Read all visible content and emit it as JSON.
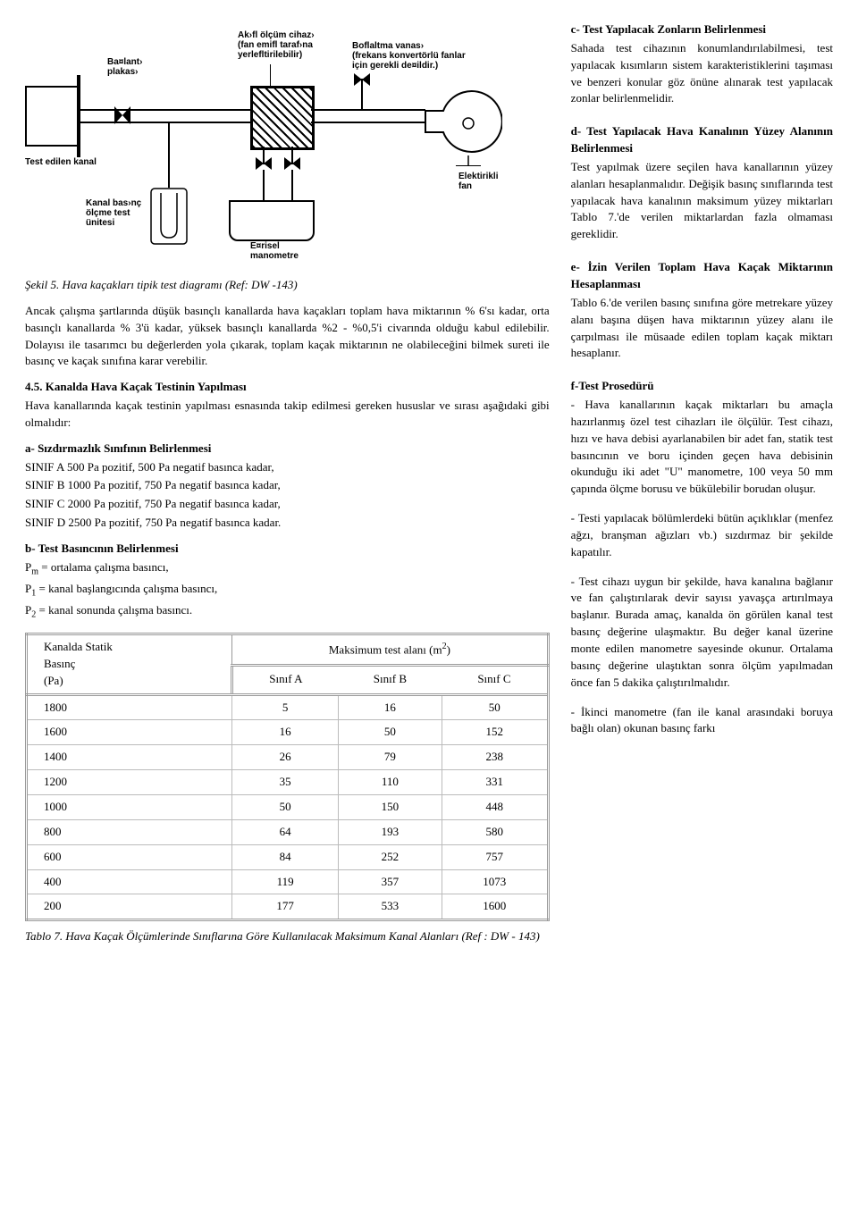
{
  "diagram": {
    "labels": {
      "baglanti_plakasi": "Ba¤lant›\nplakas›",
      "test_edilen_kanal": "Test edilen kanal",
      "akisi_olcum": "Ak›fl ölçüm cihaz›\n(fan emifl taraf›na\nyerlefltirilebilir)",
      "bosaltma_vanasi": "Boflaltma vanas›\n(frekans konvertörlü fanlar\niçin gerekli de¤ildir.)",
      "elektirikli_fan": "Elektirikli\nfan",
      "kanal_basinc": "Kanal bas›nç\nölçme test\nünitesi",
      "egrisel_manometre": "E¤risel\nmanometre"
    },
    "stroke_color": "#000000",
    "background_color": "#ffffff"
  },
  "figure5_caption": "Şekil 5. Hava kaçakları tipik test diagramı (Ref: DW -143)",
  "para_after_fig": "Ancak çalışma şartlarında düşük basınçlı kanallarda hava kaçakları toplam hava miktarının % 6'sı kadar, orta basınçlı kanallarda % 3'ü kadar, yüksek basınçlı kanallarda %2 - %0,5'i civarında olduğu kabul edilebilir. Dolayısı ile tasarımcı bu değerlerden yola çıkarak, toplam kaçak miktarının ne olabileceğini bilmek sureti ile basınç ve kaçak sınıfına karar verebilir.",
  "sec_4_5": {
    "title": "4.5. Kanalda Hava Kaçak Testinin Yapılması",
    "body": "Hava kanallarında kaçak testinin yapılması esnasında takip edilmesi gereken hususlar ve sırası aşağıdaki gibi olmalıdır:"
  },
  "sec_a": {
    "title": "a- Sızdırmazlık Sınıfının Belirlenmesi",
    "lines": [
      "SINIF A  500 Pa pozitif, 500 Pa negatif basınca kadar,",
      "SINIF B  1000 Pa pozitif, 750 Pa negatif basınca kadar,",
      "SINIF C  2000 Pa pozitif, 750 Pa negatif basınca kadar,",
      "SINIF D  2500 Pa pozitif, 750 Pa negatif basınca kadar."
    ]
  },
  "sec_b": {
    "title": "b- Test Basıncının Belirlenmesi",
    "lines": [
      {
        "sym": "P",
        "sub": "m",
        "txt": " = ortalama çalışma basıncı,"
      },
      {
        "sym": "P",
        "sub": "1",
        "txt": " = kanal başlangıcında çalışma basıncı,"
      },
      {
        "sym": "P",
        "sub": "2",
        "txt": " = kanal sonunda çalışma basıncı."
      }
    ]
  },
  "right_col": {
    "c": {
      "title": "c- Test Yapılacak Zonların Belirlenmesi",
      "body": "Sahada test cihazının konumlandırılabilmesi, test yapılacak kısımların sistem karakteristiklerini taşıması ve benzeri konular göz önüne alınarak test yapılacak zonlar belirlenmelidir."
    },
    "d": {
      "title": "d- Test Yapılacak Hava Kanalının Yüzey Alanının Belirlenmesi",
      "body": "Test yapılmak üzere seçilen hava kanallarının yüzey alanları hesaplanmalıdır. Değişik basınç sınıflarında test yapılacak hava kanalının maksimum yüzey miktarları Tablo 7.'de verilen miktarlardan fazla olmaması gereklidir."
    },
    "e": {
      "title": "e- İzin Verilen Toplam Hava Kaçak Miktarının Hesaplanması",
      "body": "Tablo 6.'de verilen basınç sınıfına göre metrekare yüzey alanı başına düşen hava miktarının yüzey alanı ile çarpılması ile müsaade edilen toplam kaçak miktarı hesaplanır."
    },
    "f": {
      "title": "f-Test Prosedürü",
      "body1": "- Hava kanallarının kaçak miktarları bu amaçla hazırlanmış özel test cihazları ile ölçülür. Test cihazı, hızı ve hava debisi ayarlanabilen bir adet fan, statik test basıncının ve boru içinden geçen hava debisinin okunduğu iki adet \"U\" manometre, 100 veya 50 mm çapında ölçme borusu ve bükülebilir borudan oluşur.",
      "body2": "- Testi yapılacak bölümlerdeki bütün açıklıklar (menfez ağzı, branşman ağızları vb.) sızdırmaz bir şekilde kapatılır.",
      "body3": "- Test cihazı uygun bir şekilde, hava kanalına bağlanır ve fan çalıştırılarak devir sayısı yavaşça artırılmaya başlanır. Burada amaç, kanalda ön görülen kanal test basınç değerine ulaşmaktır. Bu değer kanal üzerine monte edilen manometre sayesinde okunur. Ortalama basınç değerine ulaştıktan sonra ölçüm yapılmadan önce fan 5 dakika çalıştırılmalıdır.",
      "body4": "- İkinci manometre (fan ile kanal arasındaki boruya bağlı olan) okunan basınç farkı"
    }
  },
  "table7": {
    "header_left": "Kanalda Statik\nBasınç\n(Pa)",
    "header_right_html": "Maksimum test alanı (m<span class=\"sup\">2</span>)",
    "columns": [
      "Sınıf A",
      "Sınıf B",
      "Sınıf C"
    ],
    "rows": [
      [
        "1800",
        "5",
        "16",
        "50"
      ],
      [
        "1600",
        "16",
        "50",
        "152"
      ],
      [
        "1400",
        "26",
        "79",
        "238"
      ],
      [
        "1200",
        "35",
        "110",
        "331"
      ],
      [
        "1000",
        "50",
        "150",
        "448"
      ],
      [
        "800",
        "64",
        "193",
        "580"
      ],
      [
        "600",
        "84",
        "252",
        "757"
      ],
      [
        "400",
        "119",
        "357",
        "1073"
      ],
      [
        "200",
        "177",
        "533",
        "1600"
      ]
    ],
    "caption": "Tablo 7. Hava Kaçak Ölçümlerinde Sınıflarına Göre Kullanılacak Maksimum Kanal Alanları (Ref : DW - 143)",
    "border_color": "#7a7a7a",
    "font_size": 13
  }
}
